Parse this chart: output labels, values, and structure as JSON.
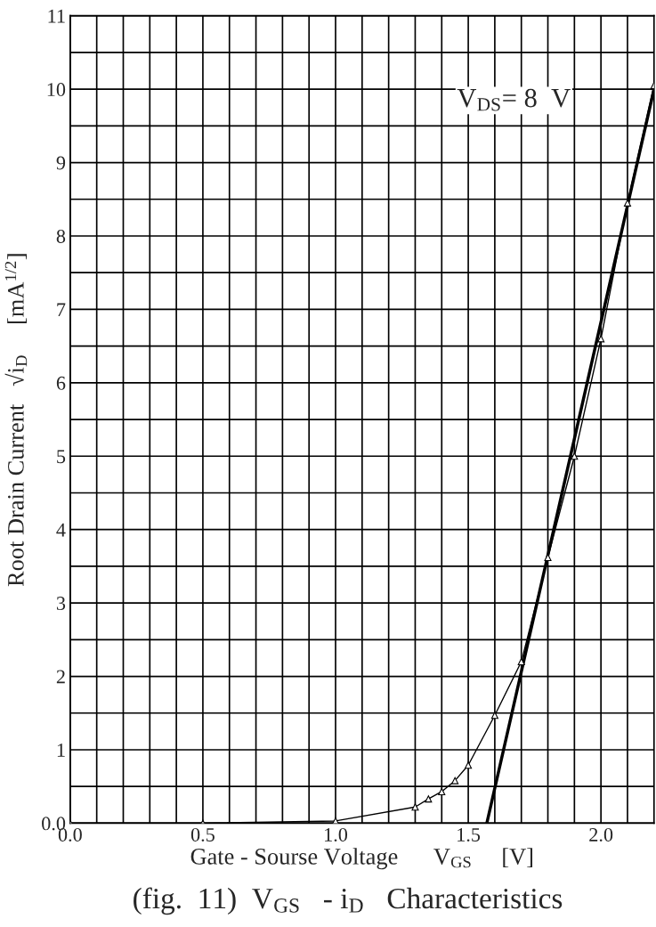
{
  "chart_data": {
    "type": "line",
    "title": "(fig.  11)  V$_{GS}$   - i$_{D}$   Characteristics",
    "xlabel": "Gate - Sourse Voltage      V$_{GS}$     [V]",
    "ylabel": "Root Drain Current   √i$_{D}$     [mA$^{1/2}$]",
    "annotations": [
      "V$_{DS}$= 8  V"
    ],
    "series": [
      {
        "color": "#000000",
        "marker": "triangle",
        "line_style": "solid",
        "x": [
          0,
          0.5,
          1.0,
          1.3,
          1.35,
          1.4,
          1.45,
          1.5,
          1.6,
          1.7,
          1.8,
          1.9,
          2.0,
          2.1,
          2.2
        ],
        "values": [
          0,
          0,
          0.03,
          0.22,
          0.33,
          0.43,
          0.58,
          0.79,
          1.47,
          2.2,
          3.62,
          5.0,
          6.6,
          8.45,
          10.05
        ]
      },
      {
        "type": "line",
        "color": "#000000",
        "marker": "none",
        "line_style": "solid",
        "x": [
          1.57,
          2.2
        ],
        "values": [
          0,
          10.0
        ]
      }
    ],
    "xlim": [
      0,
      2.2
    ],
    "ylim": [
      0,
      11
    ],
    "xticks": [
      {
        "value": 0,
        "label": "0.0"
      },
      {
        "value": 0.1,
        "label": null
      },
      {
        "value": 0.2,
        "label": null
      },
      {
        "value": 0.3,
        "label": null
      },
      {
        "value": 0.4,
        "label": null
      },
      {
        "value": 0.5,
        "label": "0.5"
      },
      {
        "value": 0.6,
        "label": null
      },
      {
        "value": 0.7,
        "label": null
      },
      {
        "value": 0.8,
        "label": null
      },
      {
        "value": 0.9,
        "label": null
      },
      {
        "value": 1.0,
        "label": "1.0"
      },
      {
        "value": 1.1,
        "label": null
      },
      {
        "value": 1.2,
        "label": null
      },
      {
        "value": 1.3,
        "label": null
      },
      {
        "value": 1.4,
        "label": null
      },
      {
        "value": 1.5,
        "label": "1.5"
      },
      {
        "value": 1.6,
        "label": null
      },
      {
        "value": 1.7,
        "label": null
      },
      {
        "value": 1.8,
        "label": null
      },
      {
        "value": 1.9,
        "label": null
      },
      {
        "value": 2.0,
        "label": "2.0"
      },
      {
        "value": 2.1,
        "label": null
      },
      {
        "value": 2.2,
        "label": null
      }
    ],
    "yticks": [
      {
        "value": 0,
        "label": "0.0"
      },
      {
        "value": 0.5,
        "label": null
      },
      1,
      {
        "value": 1.5,
        "label": null
      },
      2,
      {
        "value": 2.5,
        "label": null
      },
      3,
      {
        "value": 3.5,
        "label": null
      },
      4,
      {
        "value": 4.5,
        "label": null
      },
      5,
      {
        "value": 5.5,
        "label": null
      },
      6,
      {
        "value": 6.5,
        "label": null
      },
      7,
      {
        "value": 7.5,
        "label": null
      },
      8,
      {
        "value": 8.5,
        "label": null
      },
      9,
      {
        "value": 9.5,
        "label": null
      },
      10,
      {
        "value": 10.5,
        "label": null
      },
      11
    ],
    "grid": true
  }
}
